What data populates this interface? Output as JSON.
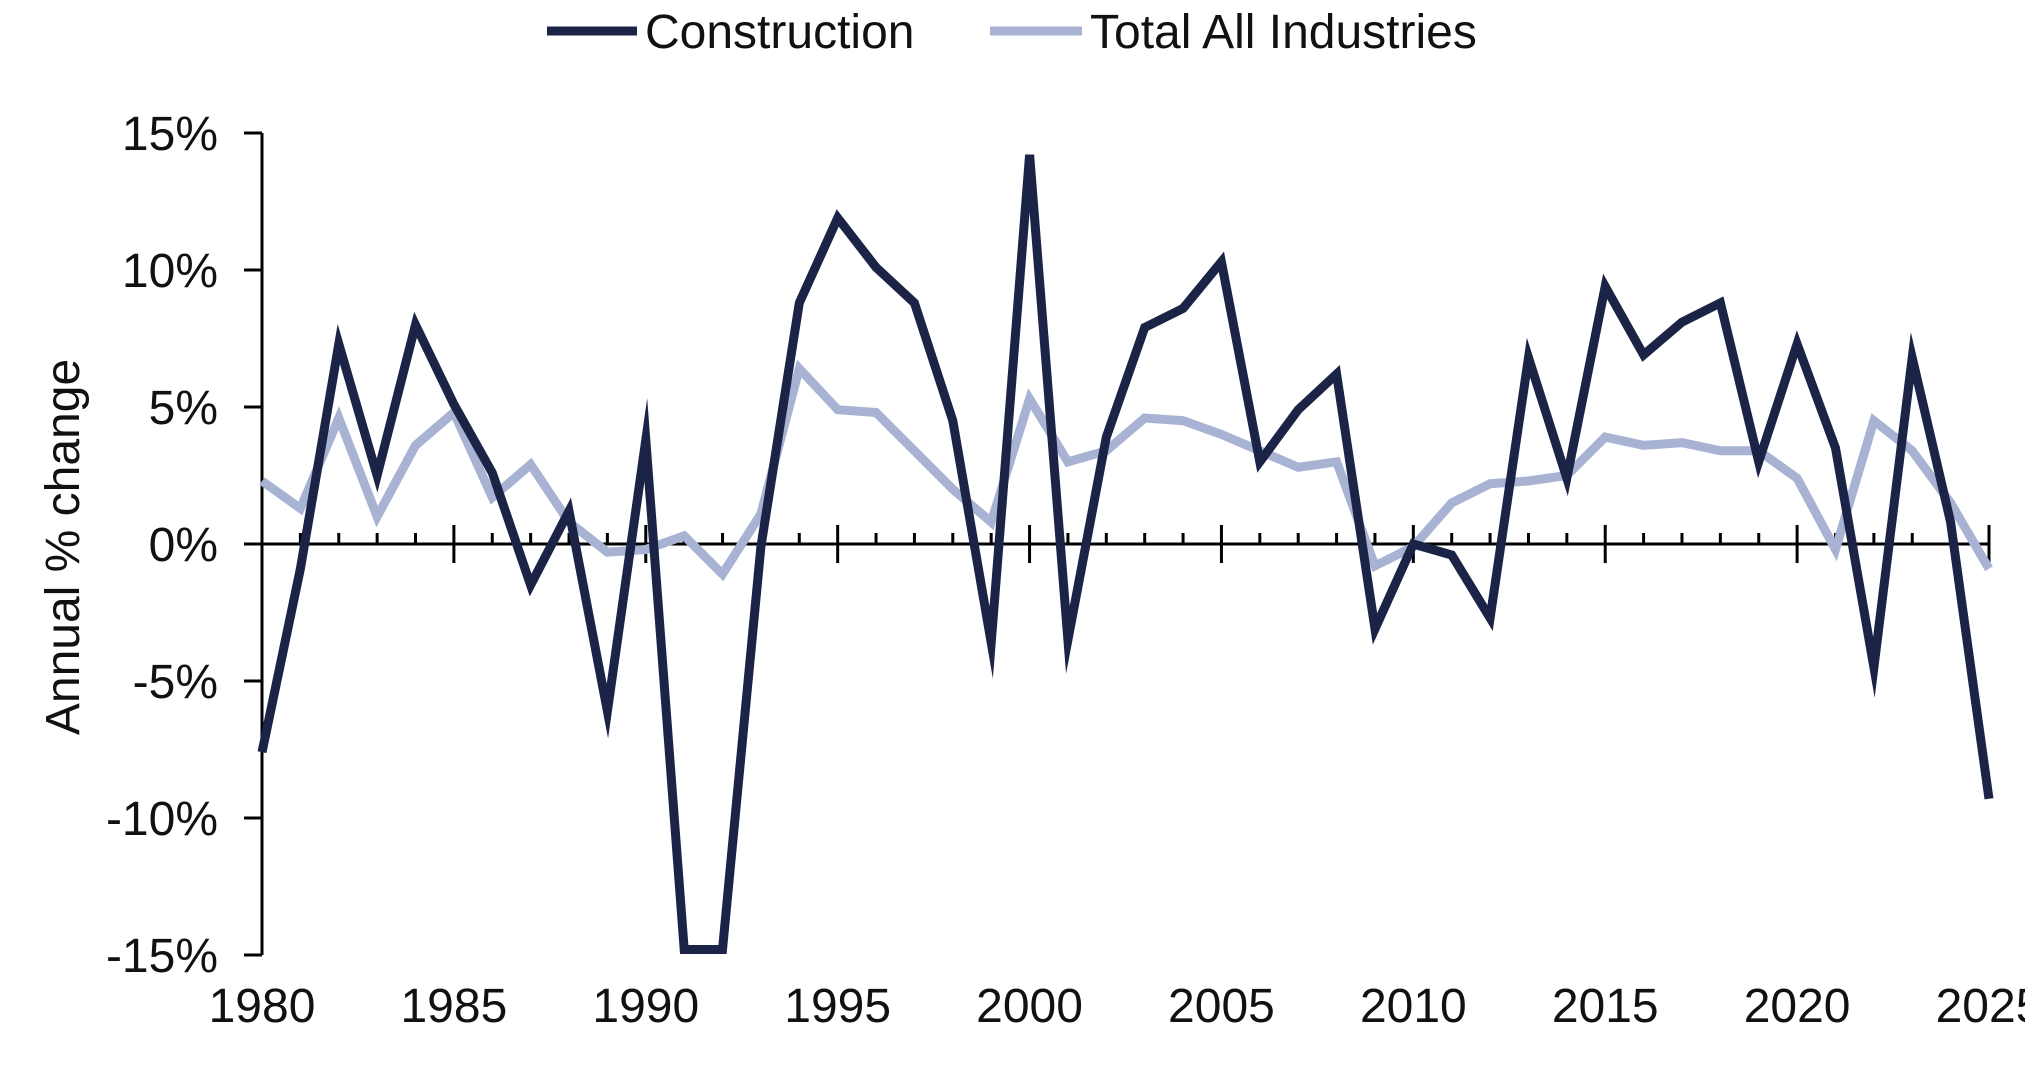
{
  "chart_data": {
    "type": "line",
    "title": "",
    "xlabel": "",
    "ylabel": "Annual % change",
    "xlim": [
      1980,
      2025
    ],
    "ylim": [
      -15,
      15
    ],
    "yticks": [
      15,
      10,
      5,
      0,
      -5,
      -10,
      -15
    ],
    "ytick_labels": [
      "15%",
      "10%",
      "5%",
      "0%",
      "-5%",
      "-10%",
      "-15%"
    ],
    "xticks": [
      1980,
      1985,
      1990,
      1995,
      2000,
      2005,
      2010,
      2015,
      2020,
      2025
    ],
    "xtick_labels": [
      "1980",
      "1985",
      "1990",
      "1995",
      "2000",
      "2005",
      "2010",
      "2015",
      "2020",
      "2025"
    ],
    "legend_position": "top-center",
    "grid": false,
    "x": [
      1980,
      1981,
      1982,
      1983,
      1984,
      1985,
      1986,
      1987,
      1988,
      1989,
      1990,
      1991,
      1992,
      1993,
      1994,
      1995,
      1996,
      1997,
      1998,
      1999,
      2000,
      2001,
      2002,
      2003,
      2004,
      2005,
      2006,
      2007,
      2008,
      2009,
      2010,
      2011,
      2012,
      2013,
      2014,
      2015,
      2016,
      2017,
      2018,
      2019,
      2020,
      2021,
      2022,
      2023,
      2024,
      2025
    ],
    "series": [
      {
        "name": "Construction",
        "color": "#1b2447",
        "values": [
          -7.6,
          -0.9,
          7.3,
          2.5,
          8.0,
          5.1,
          2.6,
          -1.5,
          1.2,
          -6.1,
          3.8,
          -14.8,
          -14.8,
          -0.1,
          8.8,
          11.9,
          10.1,
          8.8,
          4.5,
          -3.6,
          14.2,
          -3.5,
          3.9,
          7.9,
          8.6,
          10.3,
          3.0,
          4.9,
          6.2,
          -3.1,
          0.0,
          -0.4,
          -2.7,
          6.8,
          2.4,
          9.4,
          6.9,
          8.1,
          8.8,
          3.0,
          7.3,
          3.5,
          -4.5,
          6.8,
          0.8,
          -9.3
        ]
      },
      {
        "name": "Total All Industries",
        "color": "#a8b2d3",
        "values": [
          2.3,
          1.3,
          4.6,
          1.0,
          3.6,
          4.8,
          1.7,
          2.9,
          0.8,
          -0.3,
          -0.2,
          0.3,
          -1.1,
          1.1,
          6.4,
          4.9,
          4.8,
          3.4,
          2.0,
          0.8,
          5.3,
          3.0,
          3.4,
          4.6,
          4.5,
          4.0,
          3.4,
          2.8,
          3.0,
          -0.8,
          -0.1,
          1.5,
          2.2,
          2.3,
          2.5,
          3.9,
          3.6,
          3.7,
          3.4,
          3.4,
          2.4,
          -0.2,
          4.5,
          3.4,
          1.5,
          -0.9
        ]
      }
    ]
  }
}
